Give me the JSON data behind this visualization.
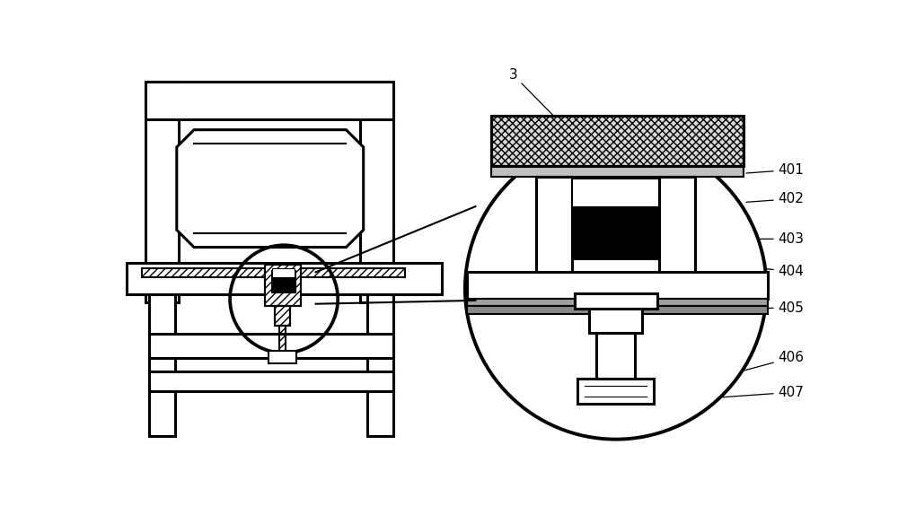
{
  "bg_color": "#ffffff",
  "lw": 1.5,
  "lw2": 2.2,
  "lw3": 2.8
}
